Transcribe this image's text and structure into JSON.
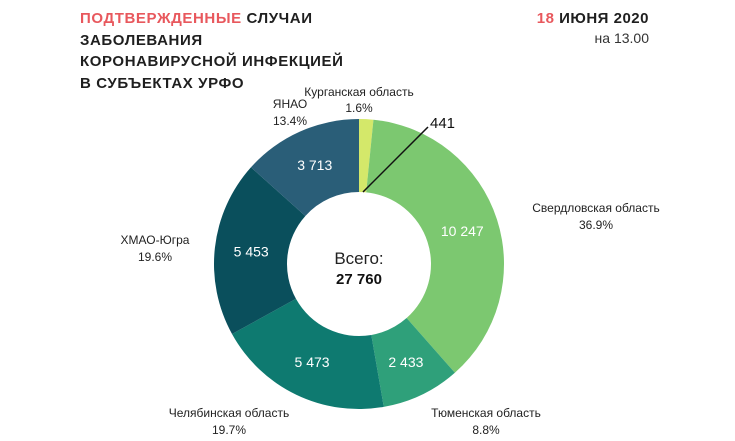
{
  "header": {
    "title_accent": "ПОДТВЕРЖДЕННЫЕ",
    "title_rest": " СЛУЧАИ",
    "title_line2": "ЗАБОЛЕВАНИЯ",
    "title_line3": "КОРОНАВИРУСНОЙ ИНФЕКЦИЕЙ",
    "title_line4": "В СУБЪЕКТАХ УРФО",
    "date_day": "18",
    "date_rest": " ИЮНЯ 2020",
    "time": "на 13.00"
  },
  "center": {
    "label": "Всего:",
    "total": "27 760"
  },
  "chart_data": {
    "type": "pie",
    "donut": true,
    "legend": "none",
    "slices": [
      {
        "name": "Курганская область",
        "value": 441,
        "value_label": "441",
        "percent": "1.6%",
        "color": "#d4e86a"
      },
      {
        "name": "Свердловская область",
        "value": 10247,
        "value_label": "10 247",
        "percent": "36.9%",
        "color": "#7cc870"
      },
      {
        "name": "Тюменская область",
        "value": 2433,
        "value_label": "2 433",
        "percent": "8.8%",
        "color": "#2fa07a"
      },
      {
        "name": "Челябинская область",
        "value": 5473,
        "value_label": "5 473",
        "percent": "19.7%",
        "color": "#0e7a70"
      },
      {
        "name": "ХМАО-Югра",
        "value": 5453,
        "value_label": "5 453",
        "percent": "19.6%",
        "color": "#0a4f5c"
      },
      {
        "name": "ЯНАО",
        "value": 3713,
        "value_label": "3 713",
        "percent": "13.4%",
        "color": "#2a5e78"
      }
    ]
  }
}
